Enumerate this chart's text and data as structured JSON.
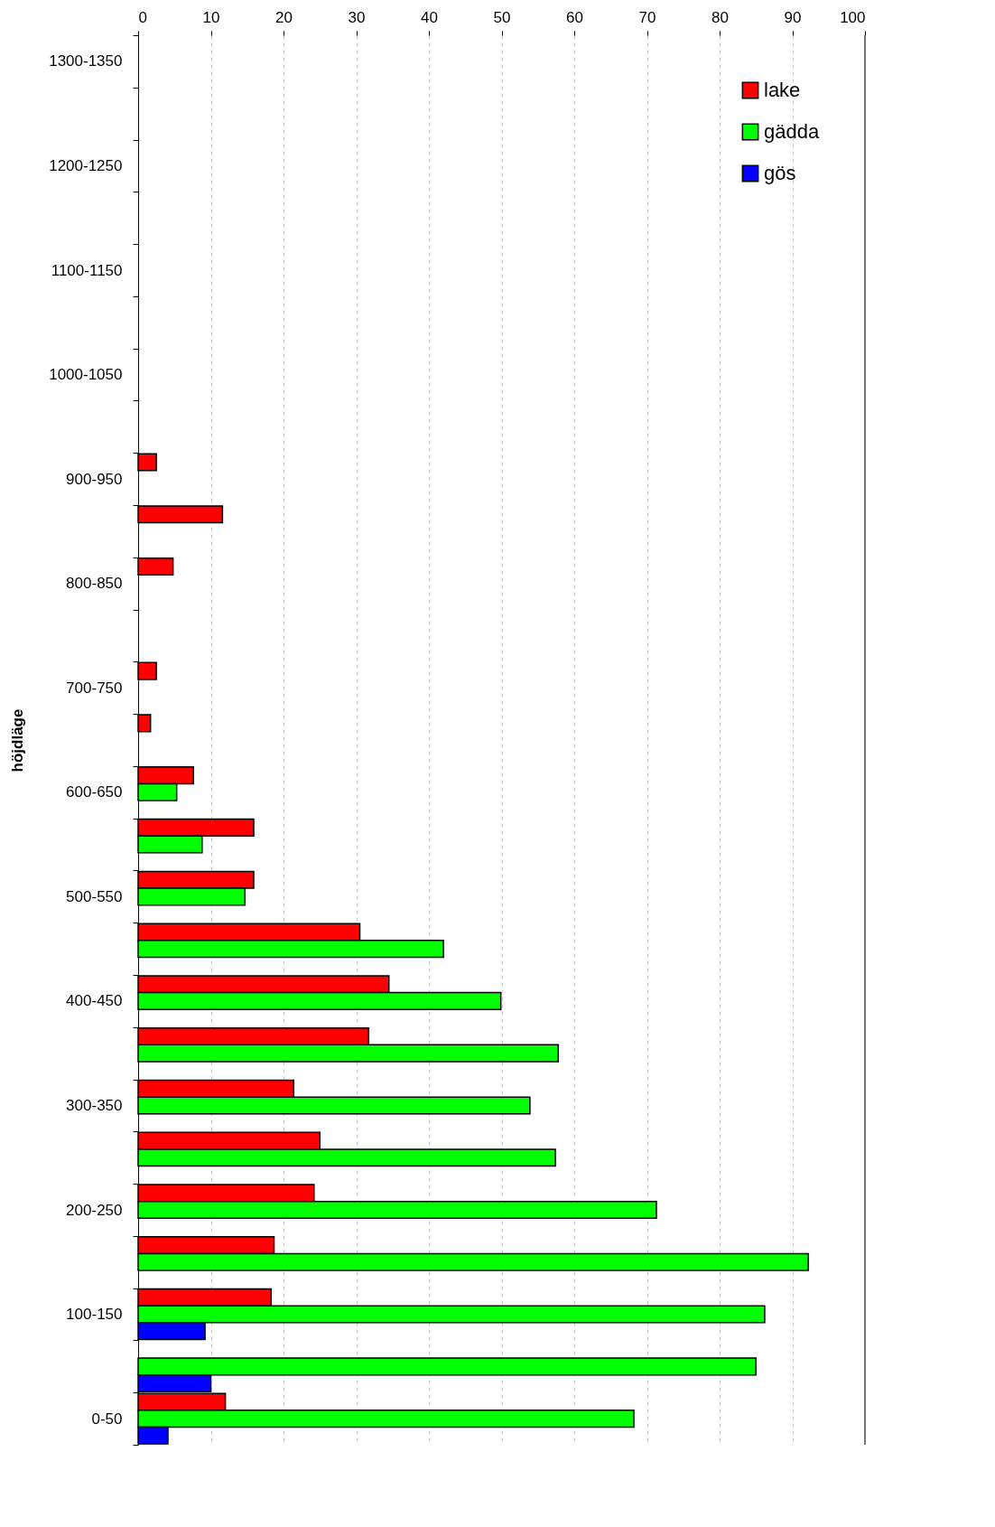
{
  "chart_data": {
    "type": "bar",
    "orientation": "horizontal",
    "ylabel": "höjdläge",
    "categories": [
      "1300-1350",
      null,
      "1200-1250",
      null,
      "1100-1150",
      null,
      "1000-1050",
      null,
      "900-950",
      null,
      "800-850",
      null,
      "700-750",
      null,
      "600-650",
      null,
      "500-550",
      null,
      "400-450",
      null,
      "300-350",
      null,
      "200-250",
      null,
      "100-150",
      null,
      "0-50"
    ],
    "series": [
      {
        "name": "lake",
        "color": "#ff0000",
        "values": [
          null,
          null,
          null,
          null,
          null,
          null,
          null,
          null,
          2.5,
          11.6,
          4.8,
          null,
          2.5,
          1.7,
          7.6,
          15.9,
          15.9,
          30.5,
          34.5,
          31.7,
          21.4,
          25.0,
          24.2,
          18.7,
          18.3,
          null,
          12.0
        ]
      },
      {
        "name": "gädda",
        "color": "#00ff00",
        "values": [
          null,
          null,
          null,
          null,
          null,
          null,
          null,
          null,
          null,
          null,
          null,
          null,
          null,
          null,
          5.3,
          8.8,
          14.7,
          42.0,
          49.9,
          57.8,
          53.9,
          57.4,
          71.3,
          92.2,
          86.2,
          85.0,
          68.2
        ]
      },
      {
        "name": "gös",
        "color": "#0000ff",
        "values": [
          null,
          null,
          null,
          null,
          null,
          null,
          null,
          null,
          null,
          null,
          null,
          null,
          null,
          null,
          null,
          null,
          null,
          null,
          null,
          null,
          null,
          null,
          null,
          null,
          9.2,
          10.0,
          4.1
        ]
      }
    ],
    "xlim": [
      0,
      100
    ],
    "xticks": [
      0,
      10,
      20,
      30,
      40,
      50,
      60,
      70,
      80,
      90,
      100
    ],
    "grid": "x",
    "legend": "top right"
  }
}
